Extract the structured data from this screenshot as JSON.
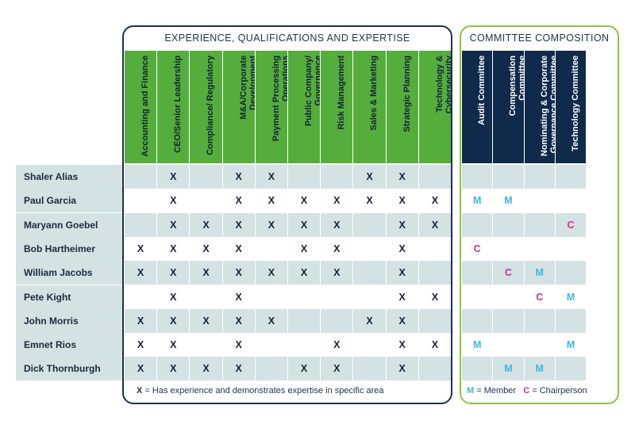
{
  "experience_title": "EXPERIENCE, QUALIFICATIONS AND EXPERTISE",
  "committee_title": "COMMITTEE COMPOSITION",
  "experience_columns": [
    "Accounting and Finance",
    "CEO/Senior Leadership",
    "Compliance/ Regulatory",
    "M&A/Corporate Development",
    "Payment Processing Operations",
    "Public Company/ Governance",
    "Risk Management",
    "Sales & Marketing",
    "Strategic Planning",
    "Technology & Cybersecurity"
  ],
  "committee_columns": [
    "Audit Committee",
    "Compensation Committee",
    "Nominating & Corporate Governance Committee",
    "Technology Committee"
  ],
  "rows": [
    {
      "name": "Shaler Alias",
      "exp": [
        "",
        "X",
        "",
        "X",
        "X",
        "",
        "",
        "X",
        "X",
        ""
      ],
      "com": [
        "",
        "",
        "",
        ""
      ]
    },
    {
      "name": "Paul Garcia",
      "exp": [
        "",
        "X",
        "",
        "X",
        "X",
        "X",
        "X",
        "X",
        "X",
        "X"
      ],
      "com": [
        "M",
        "M",
        "",
        ""
      ]
    },
    {
      "name": "Maryann Goebel",
      "exp": [
        "",
        "X",
        "X",
        "X",
        "X",
        "X",
        "X",
        "",
        "X",
        "X"
      ],
      "com": [
        "",
        "",
        "",
        "C"
      ]
    },
    {
      "name": "Bob Hartheimer",
      "exp": [
        "X",
        "X",
        "X",
        "X",
        "",
        "X",
        "X",
        "",
        "X",
        ""
      ],
      "com": [
        "C",
        "",
        "",
        ""
      ]
    },
    {
      "name": "William Jacobs",
      "exp": [
        "X",
        "X",
        "X",
        "X",
        "X",
        "X",
        "X",
        "",
        "X",
        ""
      ],
      "com": [
        "",
        "C",
        "M",
        ""
      ]
    },
    {
      "name": "Pete Kight",
      "exp": [
        "",
        "X",
        "",
        "X",
        "",
        "",
        "",
        "",
        "X",
        "X"
      ],
      "com": [
        "",
        "",
        "C",
        "M"
      ]
    },
    {
      "name": "John Morris",
      "exp": [
        "X",
        "X",
        "X",
        "X",
        "X",
        "",
        "",
        "X",
        "X",
        ""
      ],
      "com": [
        "",
        "",
        "",
        ""
      ]
    },
    {
      "name": "Emnet Rios",
      "exp": [
        "X",
        "X",
        "",
        "X",
        "",
        "",
        "X",
        "",
        "X",
        "X"
      ],
      "com": [
        "M",
        "",
        "",
        "M"
      ]
    },
    {
      "name": "Dick Thornburgh",
      "exp": [
        "X",
        "X",
        "X",
        "X",
        "",
        "X",
        "X",
        "",
        "X",
        ""
      ],
      "com": [
        "",
        "M",
        "M",
        ""
      ]
    }
  ],
  "legend_experience": {
    "symbol": "X",
    "text": "= Has experience and demonstrates expertise in specific area"
  },
  "legend_committee": {
    "member_symbol": "M",
    "member_text": "= Member",
    "chair_symbol": "C",
    "chair_text": "= Chairperson"
  },
  "colors": {
    "experience_header": "#55ad3c",
    "committee_header": "#0f2a4a",
    "row_band": "#d4e2e3",
    "member": "#3bb6e2",
    "chair": "#c8338f"
  }
}
